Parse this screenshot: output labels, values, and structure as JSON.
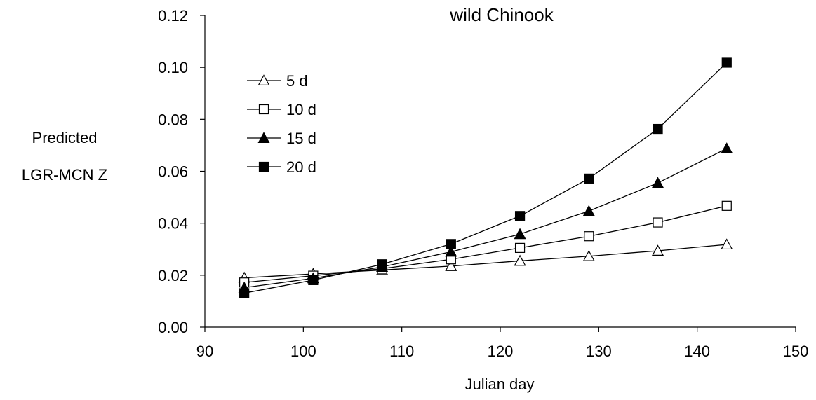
{
  "chart_data": {
    "type": "line",
    "title": "wild Chinook",
    "xlabel": "Julian day",
    "ylabel_lines": [
      "Predicted",
      "LGR-MCN Z"
    ],
    "xlim": [
      90,
      150
    ],
    "ylim": [
      0.0,
      0.12
    ],
    "xticks": [
      90,
      100,
      110,
      120,
      130,
      140,
      150
    ],
    "yticks": [
      "0.00",
      "0.02",
      "0.04",
      "0.06",
      "0.08",
      "0.10",
      "0.12"
    ],
    "x": [
      94,
      101,
      108,
      115,
      122,
      129,
      136,
      143
    ],
    "grid": false,
    "legend_position": "top-left",
    "series": [
      {
        "name": "5 d",
        "marker": "triangle-open",
        "values": [
          0.019,
          0.0205,
          0.022,
          0.0235,
          0.0255,
          0.0273,
          0.0294,
          0.0318
        ]
      },
      {
        "name": "10 d",
        "marker": "square-open",
        "values": [
          0.0172,
          0.0198,
          0.0225,
          0.0261,
          0.0305,
          0.035,
          0.0403,
          0.0467
        ]
      },
      {
        "name": "15 d",
        "marker": "triangle-filled",
        "values": [
          0.0152,
          0.0188,
          0.0232,
          0.029,
          0.0358,
          0.0447,
          0.0555,
          0.0688
        ]
      },
      {
        "name": "20 d",
        "marker": "square-filled",
        "values": [
          0.0131,
          0.0181,
          0.0242,
          0.032,
          0.0428,
          0.0572,
          0.0763,
          0.1018
        ]
      }
    ]
  }
}
